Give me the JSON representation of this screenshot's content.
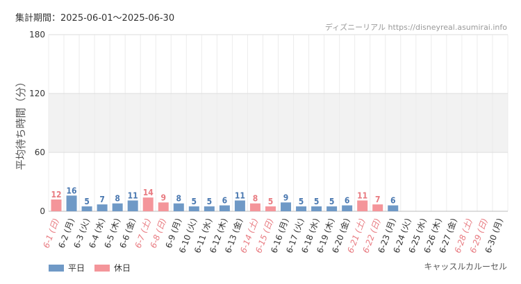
{
  "header": {
    "period_label": "集計期間：2025-06-01～2025-06-30",
    "source": "ディズニーリアル https://disneyreal.asumirai.info"
  },
  "attraction": "キャッスルカルーセル",
  "legend": [
    {
      "label": "平日",
      "color": "#6f99c6"
    },
    {
      "label": "休日",
      "color": "#f4959a"
    }
  ],
  "chart_data": {
    "type": "bar",
    "ylabel": "平均待ち時間（分）",
    "ylim": [
      0,
      180
    ],
    "yticks": [
      0,
      60,
      120,
      180
    ],
    "grid": true,
    "shaded_band": [
      60,
      120
    ],
    "colors": {
      "weekday": "#6f99c6",
      "holiday": "#f4959a",
      "weekday_text": "#4a78b0",
      "holiday_text": "#e87a80"
    },
    "categories": [
      "6-1 (日)",
      "6-2 (月)",
      "6-3 (火)",
      "6-4 (水)",
      "6-5 (木)",
      "6-6 (金)",
      "6-7 (土)",
      "6-8 (日)",
      "6-9 (月)",
      "6-10 (火)",
      "6-11 (水)",
      "6-12 (木)",
      "6-13 (金)",
      "6-14 (土)",
      "6-15 (日)",
      "6-16 (月)",
      "6-17 (火)",
      "6-18 (水)",
      "6-19 (木)",
      "6-20 (金)",
      "6-21 (土)",
      "6-22 (日)",
      "6-23 (月)",
      "6-24 (火)",
      "6-25 (水)",
      "6-26 (木)",
      "6-27 (金)",
      "6-28 (土)",
      "6-29 (日)",
      "6-30 (月)"
    ],
    "holiday": [
      true,
      false,
      false,
      false,
      false,
      false,
      true,
      true,
      false,
      false,
      false,
      false,
      false,
      true,
      true,
      false,
      false,
      false,
      false,
      false,
      true,
      true,
      false,
      false,
      false,
      false,
      false,
      true,
      true,
      false
    ],
    "values": [
      12,
      16,
      5,
      7,
      8,
      11,
      14,
      9,
      8,
      5,
      5,
      6,
      11,
      8,
      5,
      9,
      5,
      5,
      5,
      6,
      11,
      7,
      6,
      null,
      null,
      null,
      null,
      null,
      null,
      null
    ]
  }
}
